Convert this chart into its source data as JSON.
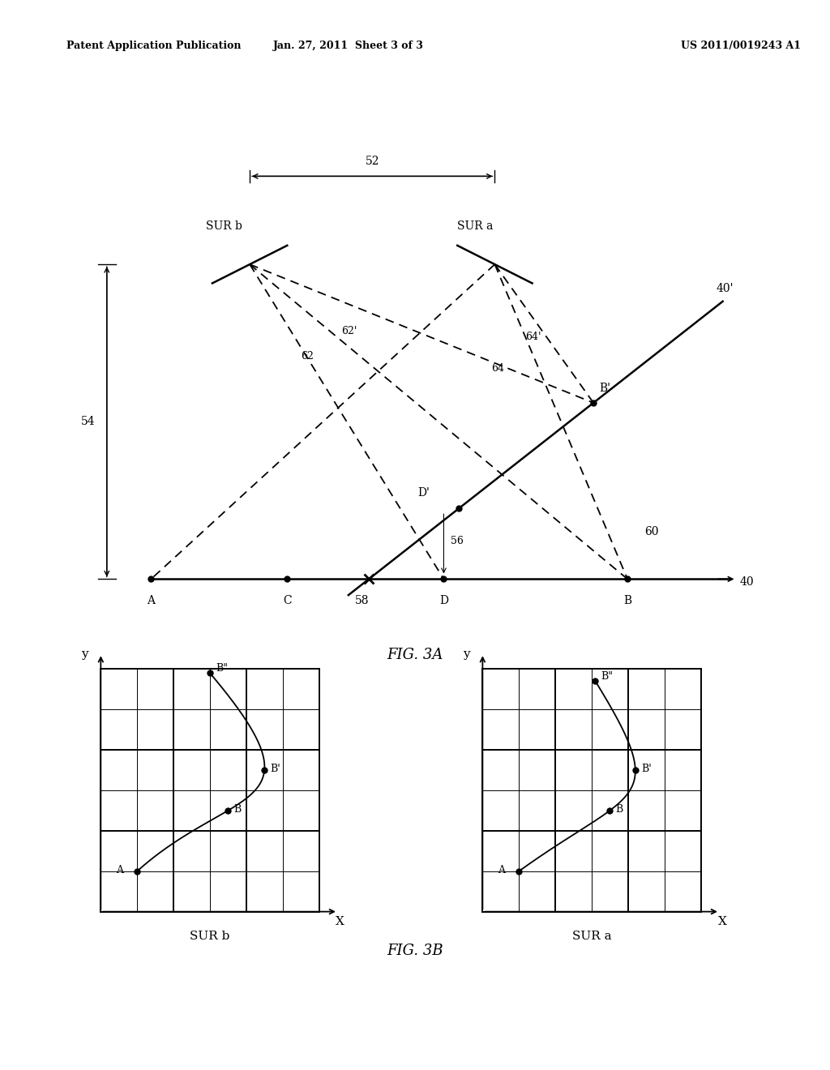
{
  "header_left": "Patent Application Publication",
  "header_mid": "Jan. 27, 2011  Sheet 3 of 3",
  "header_right": "US 2011/0019243 A1",
  "fig3a_label": "FIG. 3A",
  "fig3b_label": "FIG. 3B",
  "bg_color": "#ffffff",
  "label_52": "52",
  "label_54": "54",
  "label_40": "40",
  "label_40p": "40'",
  "label_56": "56",
  "label_58": "58",
  "label_60": "60",
  "label_62": "62",
  "label_62p": "62'",
  "label_64": "64",
  "label_64p": "64'",
  "label_A": "A",
  "label_B": "B",
  "label_C": "C",
  "label_D": "D",
  "label_Dp": "D'",
  "label_Bp": "B'",
  "label_SURa": "SUR a",
  "label_SURb": "SUR b",
  "label_SURa2": "SUR a",
  "label_SURb2": "SUR b",
  "label_X": "X",
  "label_y": "y",
  "label_Bpp": "B\""
}
